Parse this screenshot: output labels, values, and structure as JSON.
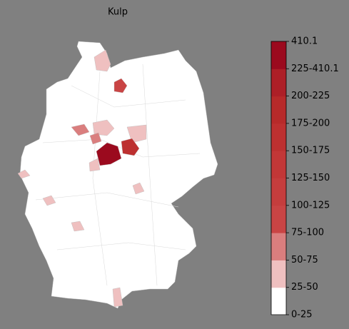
{
  "title": "Kulp",
  "legend": {
    "labels": [
      "0-25",
      "25-50",
      "50-75",
      "75-100",
      "100-125",
      "125-150",
      "150-175",
      "175-200",
      "200-225",
      "225-410.1",
      "410.1"
    ],
    "colors": [
      "#ffffff",
      "#efc0c0",
      "#da7e7e",
      "#c94444",
      "#c53d3d",
      "#c23737",
      "#bd3030",
      "#b72a2a",
      "#ad1f27",
      "#9b0a1e"
    ]
  }
}
